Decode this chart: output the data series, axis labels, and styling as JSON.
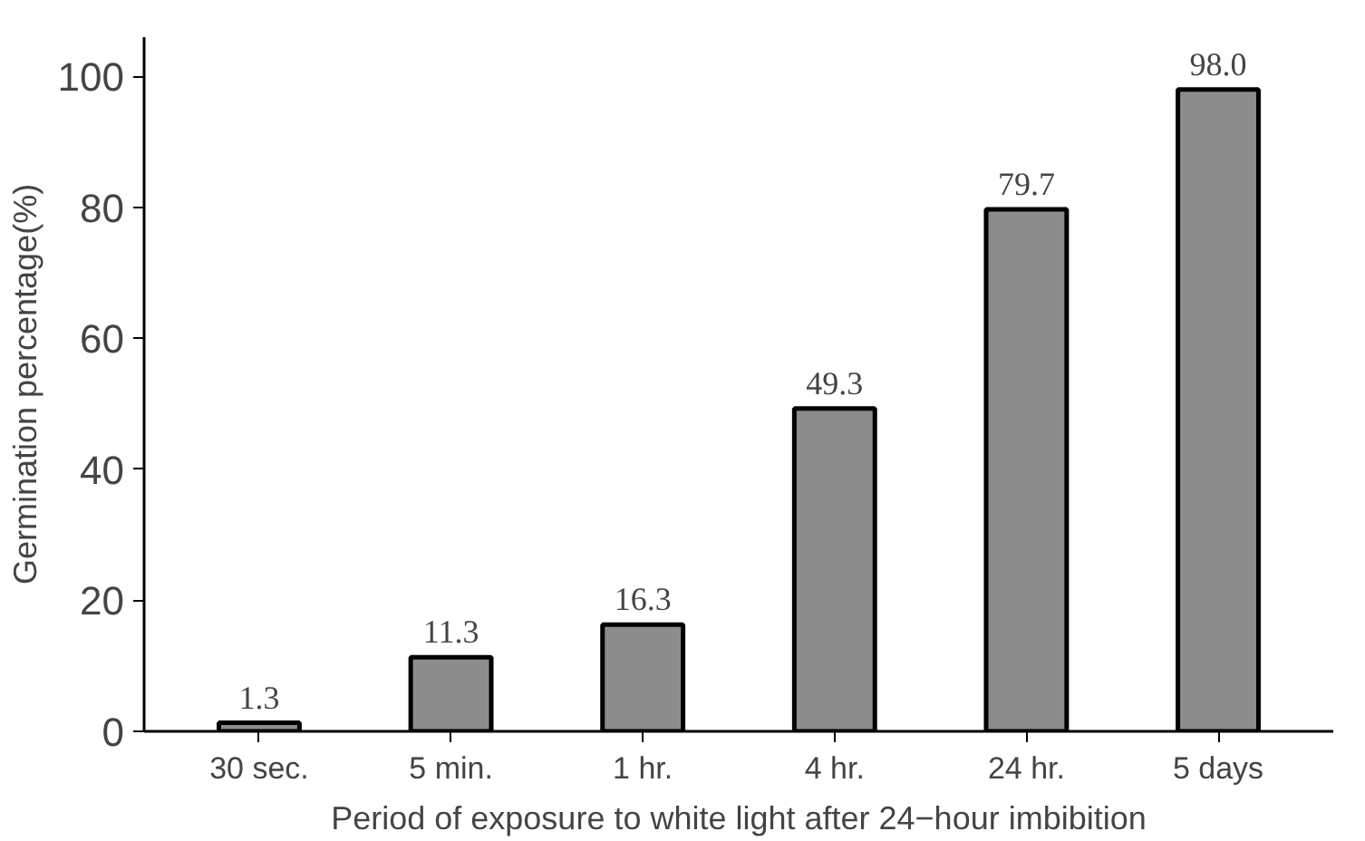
{
  "chart_data": {
    "type": "bar",
    "xlabel": "Period of exposure to white light after 24−hour imbibition",
    "ylabel": "Germination percentage(%)",
    "categories": [
      "30 sec.",
      "5 min.",
      "1 hr.",
      "4 hr.",
      "24 hr.",
      "5 days"
    ],
    "values": [
      1.3,
      11.3,
      16.3,
      49.3,
      79.7,
      98.0
    ],
    "value_labels": [
      "1.3",
      "11.3",
      "16.3",
      "49.3",
      "79.7",
      "98.0"
    ],
    "color": "#8c8c8c",
    "ylim": [
      0,
      106
    ],
    "yticks": [
      0,
      20,
      40,
      60,
      80,
      100
    ],
    "grid": false
  }
}
